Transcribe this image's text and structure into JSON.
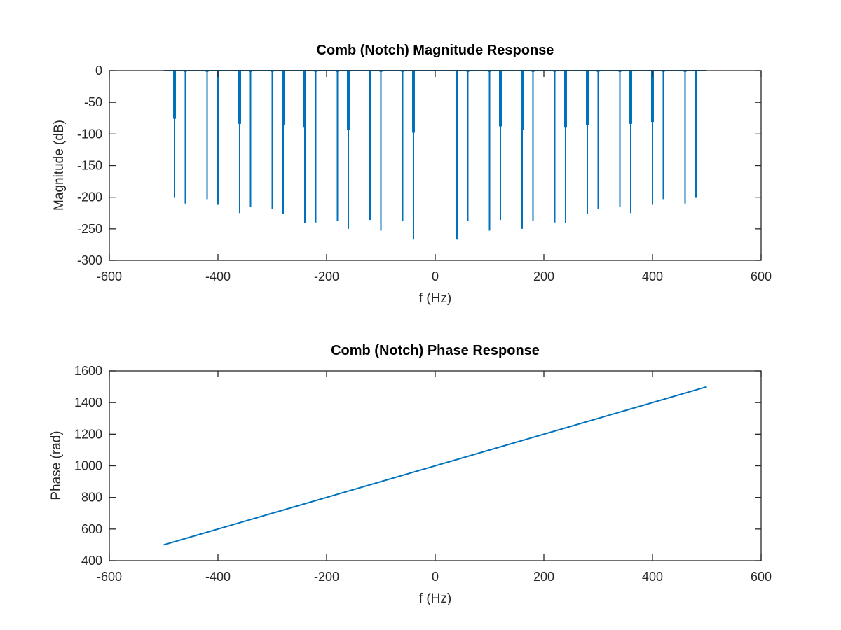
{
  "chart_data": [
    {
      "type": "line",
      "title": "Comb (Notch) Magnitude Response",
      "xlabel": "f (Hz)",
      "ylabel": "Magnitude (dB)",
      "xlim": [
        -600,
        600
      ],
      "ylim": [
        -300,
        0
      ],
      "xticks": [
        -600,
        -400,
        -200,
        0,
        200,
        400,
        600
      ],
      "yticks": [
        0,
        -50,
        -100,
        -150,
        -200,
        -250,
        -300
      ],
      "grid": false,
      "color": "#0072bd",
      "baseline": {
        "x": [
          -500,
          500
        ],
        "y": [
          0,
          0
        ]
      },
      "notches": [
        {
          "f": -480,
          "depth": -201,
          "thick": -76
        },
        {
          "f": -460,
          "depth": -210,
          "thick": -2
        },
        {
          "f": -420,
          "depth": -203,
          "thick": -2
        },
        {
          "f": -400,
          "depth": -212,
          "thick": -81
        },
        {
          "f": -360,
          "depth": -225,
          "thick": -84
        },
        {
          "f": -340,
          "depth": -215,
          "thick": -2
        },
        {
          "f": -300,
          "depth": -219,
          "thick": -2
        },
        {
          "f": -280,
          "depth": -227,
          "thick": -86
        },
        {
          "f": -240,
          "depth": -241,
          "thick": -90
        },
        {
          "f": -220,
          "depth": -240,
          "thick": -2
        },
        {
          "f": -180,
          "depth": -238,
          "thick": -2
        },
        {
          "f": -160,
          "depth": -250,
          "thick": -93
        },
        {
          "f": -120,
          "depth": -236,
          "thick": -88
        },
        {
          "f": -100,
          "depth": -253,
          "thick": -2
        },
        {
          "f": -60,
          "depth": -238,
          "thick": -2
        },
        {
          "f": -40,
          "depth": -267,
          "thick": -98
        },
        {
          "f": 40,
          "depth": -267,
          "thick": -98
        },
        {
          "f": 60,
          "depth": -238,
          "thick": -2
        },
        {
          "f": 100,
          "depth": -253,
          "thick": -2
        },
        {
          "f": 120,
          "depth": -236,
          "thick": -88
        },
        {
          "f": 160,
          "depth": -250,
          "thick": -93
        },
        {
          "f": 180,
          "depth": -238,
          "thick": -2
        },
        {
          "f": 220,
          "depth": -240,
          "thick": -2
        },
        {
          "f": 240,
          "depth": -241,
          "thick": -90
        },
        {
          "f": 280,
          "depth": -227,
          "thick": -86
        },
        {
          "f": 300,
          "depth": -219,
          "thick": -2
        },
        {
          "f": 340,
          "depth": -215,
          "thick": -2
        },
        {
          "f": 360,
          "depth": -225,
          "thick": -84
        },
        {
          "f": 400,
          "depth": -212,
          "thick": -81
        },
        {
          "f": 420,
          "depth": -203,
          "thick": -2
        },
        {
          "f": 460,
          "depth": -210,
          "thick": -2
        },
        {
          "f": 480,
          "depth": -201,
          "thick": -76
        }
      ]
    },
    {
      "type": "line",
      "title": "Comb (Notch) Phase Response",
      "xlabel": "f (Hz)",
      "ylabel": "Phase (rad)",
      "xlim": [
        -600,
        600
      ],
      "ylim": [
        400,
        1600
      ],
      "xticks": [
        -600,
        -400,
        -200,
        0,
        200,
        400,
        600
      ],
      "yticks": [
        400,
        600,
        800,
        1000,
        1200,
        1400,
        1600
      ],
      "grid": false,
      "color": "#0072bd",
      "series": [
        {
          "x": [
            -500,
            500
          ],
          "y": [
            500,
            1500
          ]
        }
      ]
    }
  ]
}
